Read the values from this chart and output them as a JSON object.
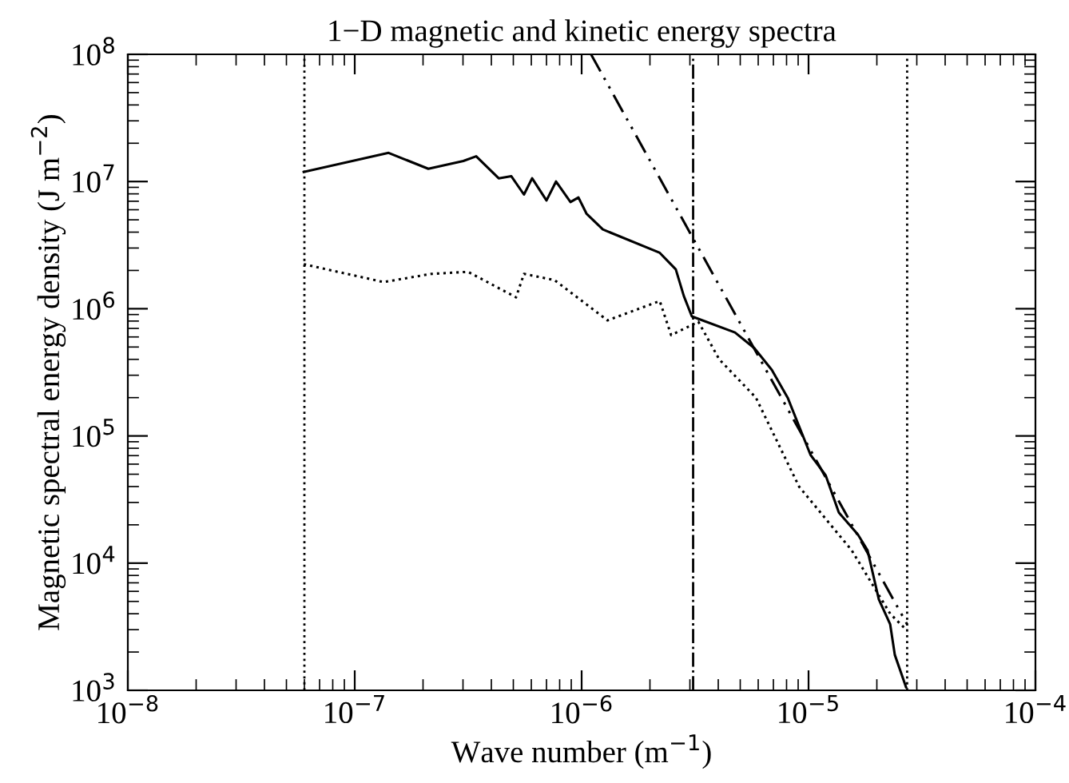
{
  "chart_data": {
    "type": "line",
    "title": "1−D magnetic and kinetic energy spectra",
    "xlabel": "Wave number (m$^{−1}$)",
    "ylabel": "Magnetic spectral energy density (J m$^{−2}$)",
    "log": "xy",
    "grid": false,
    "legend": false,
    "marker": "none",
    "xlim": [
      1e-08,
      0.0001
    ],
    "ylim": [
      1000,
      100000000
    ],
    "xticks": [
      {
        "value": 1e-08,
        "label": "10$^{−8}$"
      },
      {
        "value": 1e-07,
        "label": "10$^{−7}$"
      },
      {
        "value": 1e-06,
        "label": "10$^{−6}$"
      },
      {
        "value": 1e-05,
        "label": "10$^{−5}$"
      },
      {
        "value": 0.0001,
        "label": "10$^{−4}$"
      }
    ],
    "yticks": [
      {
        "value": 1000,
        "label": "10$^{3}$"
      },
      {
        "value": 10000,
        "label": "10$^{4}$"
      },
      {
        "value": 100000,
        "label": "10$^{5}$"
      },
      {
        "value": 1000000,
        "label": "10$^{6}$"
      },
      {
        "value": 10000000,
        "label": "10$^{7}$"
      },
      {
        "value": 100000000,
        "label": "10$^{8}$"
      }
    ],
    "series": [
      {
        "color": "#000000",
        "line_style": "solid",
        "x": [
          5.96e-08,
          1.41e-07,
          2.11e-07,
          3.01e-07,
          3.43e-07,
          4.31e-07,
          4.9e-07,
          5.57e-07,
          6.05e-07,
          7e-07,
          7.71e-07,
          8.93e-07,
          9.68e-07,
          1.05e-06,
          1.24e-06,
          2.21e-06,
          2.6e-06,
          2.82e-06,
          3.06e-06,
          4.74e-06,
          5.77e-06,
          6.89e-06,
          8.09e-06,
          1.02e-05,
          1.19e-05,
          1.36e-05,
          1.65e-05,
          1.82e-05,
          2.04e-05,
          2.29e-05,
          2.4e-05,
          2.69e-05
        ],
        "values": [
          11900000.0,
          16800000.0,
          12600000.0,
          14500000.0,
          15800000.0,
          10600000.0,
          11000000.0,
          7900000.0,
          10600000.0,
          7100000.0,
          10000000.0,
          6900000.0,
          7500000.0,
          5600000.0,
          4200000.0,
          2750000.0,
          2040000.0,
          1260000.0,
          870000.0,
          650000.0,
          490000.0,
          330000.0,
          200000.0,
          71000.0,
          49000.0,
          25000.0,
          16800.0,
          12600.0,
          5200.0,
          3300.0,
          1900.0,
          1060.0
        ]
      },
      {
        "color": "#000000",
        "line_style": "dotted",
        "x": [
          5.96e-08,
          1.34e-07,
          2.18e-07,
          3.16e-07,
          5.14e-07,
          5.57e-07,
          7.59e-07,
          1.3e-06,
          2.21e-06,
          2.48e-06,
          3.27e-06,
          4.04e-06,
          5.86e-06,
          9.08e-06,
          1.55e-05,
          2.29e-05,
          2.69e-05
        ],
        "values": [
          2240000.0,
          1620000.0,
          1880000.0,
          1950000.0,
          1230000.0,
          1880000.0,
          1680000.0,
          810000.0,
          1150000.0,
          620000.0,
          790000.0,
          400000.0,
          200000.0,
          40000.0,
          12600.0,
          4000.0,
          3000.0
        ]
      },
      {
        "color": "#000000",
        "line_style": "dashdotdot",
        "x": [
          1.1e-06,
          2.72e-05
        ],
        "values": [
          100000000.0,
          3300.0
        ]
      }
    ],
    "ref_lines": [
      {
        "axis": "x",
        "value": 6e-08,
        "color": "#000000",
        "line_style": "dotted"
      },
      {
        "axis": "x",
        "value": 3.1e-06,
        "color": "#000000",
        "line_style": "dashdot"
      },
      {
        "axis": "x",
        "value": 2.72e-05,
        "color": "#000000",
        "line_style": "dotted"
      }
    ]
  }
}
